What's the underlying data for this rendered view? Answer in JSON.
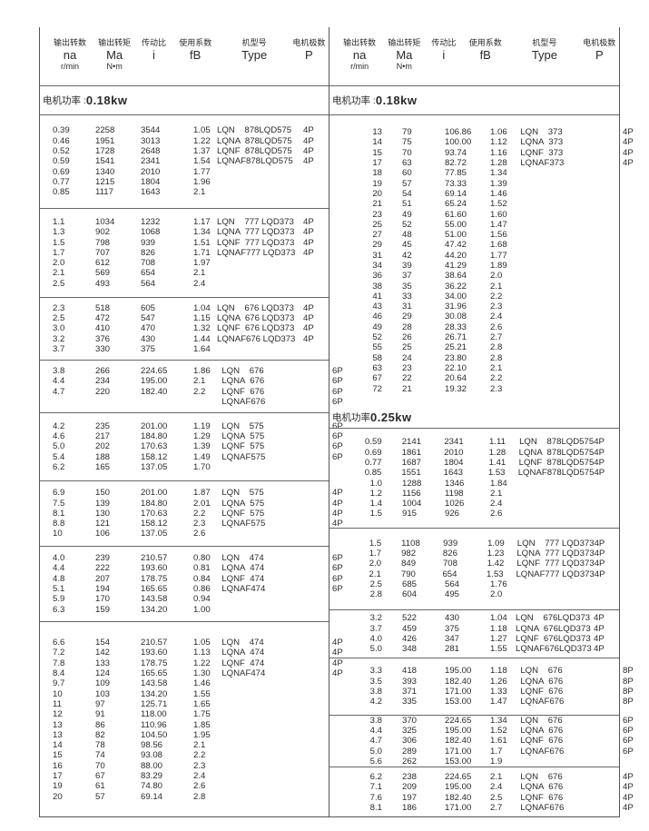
{
  "header": [
    {
      "cn": "输出转数",
      "en": "na",
      "unit": "r/min"
    },
    {
      "cn": "输出转矩",
      "en": "Ma",
      "unit": "N•m"
    },
    {
      "cn": "传动比",
      "en": "i",
      "unit": ""
    },
    {
      "cn": "使用系数",
      "en": "fB",
      "unit": ""
    },
    {
      "cn": "机型号",
      "en": "Type",
      "unit": ""
    },
    {
      "cn": "电机极数",
      "en": "P",
      "unit": ""
    }
  ],
  "left": {
    "power_label": "电机功率 :",
    "power_value": "0.18kw",
    "sections": [
      [
        [
          "0.39",
          "2258",
          "3544",
          "1.05",
          "LQN    878LQD575",
          "4P"
        ],
        [
          "0.46",
          "1951",
          "3013",
          "1.22",
          "LQNA  878LQD575",
          "4P"
        ],
        [
          "0.52",
          "1728",
          "2648",
          "1.37",
          "LQNF  878LQD575",
          "4P"
        ],
        [
          "0.59",
          "1541",
          "2341",
          "1.54",
          "LQNAF878LQD575",
          "4P"
        ],
        [
          "0.69",
          "1340",
          "2010",
          "1.77",
          "",
          ""
        ],
        [
          "0.77",
          "1215",
          "1804",
          "1.96",
          "",
          ""
        ],
        [
          "0.85",
          "1117",
          "1643",
          "2.1",
          "",
          ""
        ]
      ],
      [
        [
          "1.1",
          "1034",
          "1232",
          "1.17",
          "LQN    777 LQD373",
          "4P"
        ],
        [
          "1.3",
          "902",
          "1068",
          "1.34",
          "LQNA  777 LQD373",
          "4P"
        ],
        [
          "1.5",
          "798",
          "939",
          "1.51",
          "LQNF  777 LQD373",
          "4P"
        ],
        [
          "1.7",
          "707",
          "826",
          "1.71",
          "LQNAF777 LQD373",
          "4P"
        ],
        [
          "2.0",
          "612",
          "708",
          "1.97",
          "",
          ""
        ],
        [
          "2.1",
          "569",
          "654",
          "2.1",
          "",
          ""
        ],
        [
          "2.5",
          "493",
          "564",
          "2.4",
          "",
          ""
        ]
      ],
      [
        [
          "2.3",
          "518",
          "605",
          "1.04",
          "LQN    676 LQD373",
          "4P"
        ],
        [
          "2.5",
          "472",
          "547",
          "1.15",
          "LQNA  676 LQD373",
          "4P"
        ],
        [
          "3.0",
          "410",
          "470",
          "1.32",
          "LQNF  676 LQD373",
          "4P"
        ],
        [
          "3.2",
          "376",
          "430",
          "1.44",
          "LQNAF676 LQD373",
          "4P"
        ],
        [
          "3.7",
          "330",
          "375",
          "1.64",
          "",
          ""
        ]
      ],
      [
        [
          "3.8",
          "266",
          "224.65",
          "1.86",
          "  LQN    676",
          "            6P"
        ],
        [
          "4.4",
          "234",
          "195.00",
          "2.1",
          "  LQNA  676",
          "            6P"
        ],
        [
          "4.7",
          "220",
          "182.40",
          "2.2",
          "  LQNF  676",
          "            6P"
        ],
        [
          "",
          "",
          "",
          "",
          "  LQNAF676",
          "            6P"
        ]
      ],
      [
        [
          "4.2",
          "235",
          "201.00",
          "1.19",
          "  LQN    575",
          "            6P"
        ],
        [
          "4.6",
          "217",
          "184.80",
          "1.29",
          "  LQNA  575",
          "            6P"
        ],
        [
          "5.0",
          "202",
          "170.63",
          "1.39",
          "  LQNF  575",
          "            6P"
        ],
        [
          "5.4",
          "188",
          "158.12",
          "1.49",
          "  LQNAF575",
          "            6P"
        ],
        [
          "6.2",
          "165",
          "137.05",
          "1.70",
          "",
          ""
        ]
      ],
      [
        [
          "6.9",
          "150",
          "201.00",
          "1.87",
          "  LQN    575",
          "            4P"
        ],
        [
          "7.5",
          "139",
          "184.80",
          "2.01",
          "  LQNA  575",
          "            4P"
        ],
        [
          "8.1",
          "130",
          "170.63",
          "2.2",
          "  LQNF  575",
          "            4P"
        ],
        [
          "8.8",
          "121",
          "158.12",
          "2.3",
          "  LQNAF575",
          "            4P"
        ],
        [
          "10",
          "106",
          "137.05",
          "2.6",
          "",
          ""
        ]
      ],
      [
        [
          "4.0",
          "239",
          "210.57",
          "0.80",
          "  LQN    474",
          "            6P"
        ],
        [
          "4.4",
          "222",
          "193.60",
          "0.81",
          "  LQNA  474",
          "            6P"
        ],
        [
          "4.8",
          "207",
          "178.75",
          "0.84",
          "  LQNF  474",
          "            6P"
        ],
        [
          "5.1",
          "194",
          "165.65",
          "0.86",
          "  LQNAF474",
          "            6P"
        ],
        [
          "5.9",
          "170",
          "143.58",
          "0.94",
          "",
          ""
        ],
        [
          "6.3",
          "159",
          "134.20",
          "1.00",
          "",
          ""
        ]
      ],
      [
        [
          "6.6",
          "154",
          "210.57",
          "1.05",
          "  LQN    474",
          "            4P"
        ],
        [
          "7.2",
          "142",
          "193.60",
          "1.13",
          "  LQNA  474",
          "            4P"
        ],
        [
          "7.8",
          "133",
          "178.75",
          "1.22",
          "  LQNF  474",
          "            4P"
        ],
        [
          "8.4",
          "124",
          "165.65",
          "1.30",
          "  LQNAF474",
          "            4P"
        ],
        [
          "9.7",
          "109",
          "143.58",
          "1.46",
          "",
          ""
        ],
        [
          "10",
          "103",
          "134.20",
          "1.55",
          "",
          ""
        ],
        [
          "11",
          "97",
          "125.71",
          "1.65",
          "",
          ""
        ],
        [
          "12",
          "91",
          "118.00",
          "1.75",
          "",
          ""
        ],
        [
          "13",
          "86",
          "110.96",
          "1.85",
          "",
          ""
        ],
        [
          "13",
          "82",
          "104.50",
          "1.95",
          "",
          ""
        ],
        [
          "14",
          "78",
          "98.56",
          "2.1",
          "",
          ""
        ],
        [
          "15",
          "74",
          "93.08",
          "2.2",
          "",
          ""
        ],
        [
          "16",
          "70",
          "88.00",
          "2.3",
          "",
          ""
        ],
        [
          "17",
          "67",
          "83.29",
          "2.4",
          "",
          ""
        ],
        [
          "19",
          "61",
          "74.80",
          "2.6",
          "",
          ""
        ],
        [
          "20",
          "57",
          "69.14",
          "2.8",
          "",
          ""
        ]
      ]
    ]
  },
  "right": {
    "power_label": "电机功率 :",
    "power_value": "0.18kw",
    "sections_a": [
      [
        [
          "13",
          "79",
          "106.86",
          "1.06",
          "  LQN    373",
          "            4P"
        ],
        [
          "14",
          "75",
          "100.00",
          "1.12",
          "  LQNA  373",
          "            4P"
        ],
        [
          "15",
          "70",
          "93.74",
          "1.16",
          "  LQNF  373",
          "            4P"
        ],
        [
          "17",
          "63",
          "82.72",
          "1.28",
          "  LQNAF373",
          "            4P"
        ],
        [
          "18",
          "60",
          "77.85",
          "1.34",
          "",
          ""
        ],
        [
          "19",
          "57",
          "73.33",
          "1.39",
          "",
          ""
        ],
        [
          "20",
          "54",
          "69.14",
          "1.46",
          "",
          ""
        ],
        [
          "21",
          "51",
          "65.24",
          "1.52",
          "",
          ""
        ],
        [
          "23",
          "49",
          "61.60",
          "1.60",
          "",
          ""
        ],
        [
          "25",
          "52",
          "55.00",
          "1.47",
          "",
          ""
        ],
        [
          "27",
          "48",
          "51.00",
          "1.56",
          "",
          ""
        ],
        [
          "29",
          "45",
          "47.42",
          "1.68",
          "",
          ""
        ],
        [
          "31",
          "42",
          "44.20",
          "1.77",
          "",
          ""
        ],
        [
          "34",
          "39",
          "41.29",
          "1.89",
          "",
          ""
        ],
        [
          "36",
          "37",
          "38.64",
          "2.0",
          "",
          ""
        ],
        [
          "38",
          "35",
          "36.22",
          "2.1",
          "",
          ""
        ],
        [
          "41",
          "33",
          "34.00",
          "2.2",
          "",
          ""
        ],
        [
          "43",
          "31",
          "31.96",
          "2.3",
          "",
          ""
        ],
        [
          "46",
          "29",
          "30.08",
          "2.4",
          "",
          ""
        ],
        [
          "49",
          "28",
          "28.33",
          "2.6",
          "",
          ""
        ],
        [
          "52",
          "26",
          "26.71",
          "2.7",
          "",
          ""
        ],
        [
          "55",
          "25",
          "25.21",
          "2.8",
          "",
          ""
        ],
        [
          "58",
          "24",
          "23.80",
          "2.8",
          "",
          ""
        ],
        [
          "63",
          "23",
          "22.10",
          "2.1",
          "",
          ""
        ],
        [
          "67",
          "22",
          "20.64",
          "2.2",
          "",
          ""
        ],
        [
          "72",
          "21",
          "19.32",
          "2.3",
          "",
          ""
        ]
      ]
    ],
    "power2_label": "电机功率 ",
    "power2_value": "0.25kw",
    "sections_b": [
      [
        [
          "0.59",
          "2141",
          "2341",
          "1.11",
          "  LQN    878LQD575",
          "4P"
        ],
        [
          "0.69",
          "1861",
          "2010",
          "1.28",
          "  LQNA  878LQD575",
          "4P"
        ],
        [
          "0.77",
          "1687",
          "1804",
          "1.41",
          "  LQNF  878LQD575",
          "4P"
        ],
        [
          "0.85",
          "1551",
          "1643",
          "1.53",
          "  LQNAF878LQD575",
          "4P"
        ],
        [
          "1.0",
          "1288",
          "1346",
          "1.84",
          "",
          ""
        ],
        [
          "1.2",
          "1156",
          "1198",
          "2.1",
          "",
          ""
        ],
        [
          "1.4",
          "1004",
          "1026",
          "2.4",
          "",
          ""
        ],
        [
          "1.5",
          "915",
          "926",
          "2.6",
          "",
          ""
        ]
      ],
      [
        [
          "1.5",
          "1108",
          "939",
          "1.09",
          "  LQN    777 LQD373",
          "4P"
        ],
        [
          "1.7",
          "982",
          "826",
          "1.23",
          "  LQNA  777 LQD373",
          "4P"
        ],
        [
          "2.0",
          "849",
          "708",
          "1.42",
          "  LQNF  777 LQD373",
          "4P"
        ],
        [
          "2.1",
          "790",
          "654",
          "1.53",
          "  LQNAF777 LQD373",
          "4P"
        ],
        [
          "2.5",
          "685",
          "564",
          "1.76",
          "",
          ""
        ],
        [
          "2.8",
          "604",
          "495",
          "2.0",
          "",
          ""
        ]
      ],
      [
        [
          "3.2",
          "522",
          "430",
          "1.04",
          "LQN    676LQD373",
          "4P"
        ],
        [
          "3.7",
          "459",
          "375",
          "1.18",
          "LQNA  676LQD373",
          "4P"
        ],
        [
          "4.0",
          "426",
          "347",
          "1.27",
          "LQNF  676LQD373",
          "4P"
        ],
        [
          "5.0",
          "348",
          "281",
          "1.55",
          "LQNAF676LQD373",
          "4P"
        ]
      ],
      [
        [
          "3.3",
          "418",
          "195.00",
          "1.18",
          "  LQN    676",
          "            8P"
        ],
        [
          "3.5",
          "393",
          "182.40",
          "1.26",
          "  LQNA  676",
          "            8P"
        ],
        [
          "3.8",
          "371",
          "171.00",
          "1.33",
          "  LQNF  676",
          "            8P"
        ],
        [
          "4.2",
          "335",
          "153.00",
          "1.47",
          "  LQNAF676",
          "            8P"
        ]
      ],
      [
        [
          "3.8",
          "370",
          "224.65",
          "1.34",
          "  LQN    676",
          "            6P"
        ],
        [
          "4.4",
          "325",
          "195.00",
          "1.52",
          "  LQNA  676",
          "            6P"
        ],
        [
          "4.7",
          "306",
          "182.40",
          "1.61",
          "  LQNF  676",
          "            6P"
        ],
        [
          "5.0",
          "289",
          "171.00",
          "1.7",
          "  LQNAF676",
          "            6P"
        ],
        [
          "5.6",
          "262",
          "153.00",
          "1.9",
          "",
          ""
        ]
      ],
      [
        [
          "6.2",
          "238",
          "224.65",
          "2.1",
          "  LQN    676",
          "            4P"
        ],
        [
          "7.1",
          "209",
          "195.00",
          "2.4",
          "  LQNA  676",
          "            4P"
        ],
        [
          "7.6",
          "197",
          "182.40",
          "2.5",
          "  LQNF  676",
          "            4P"
        ],
        [
          "8.1",
          "186",
          "171.00",
          "2.7",
          "  LQNAF676",
          "            4P"
        ]
      ]
    ]
  }
}
